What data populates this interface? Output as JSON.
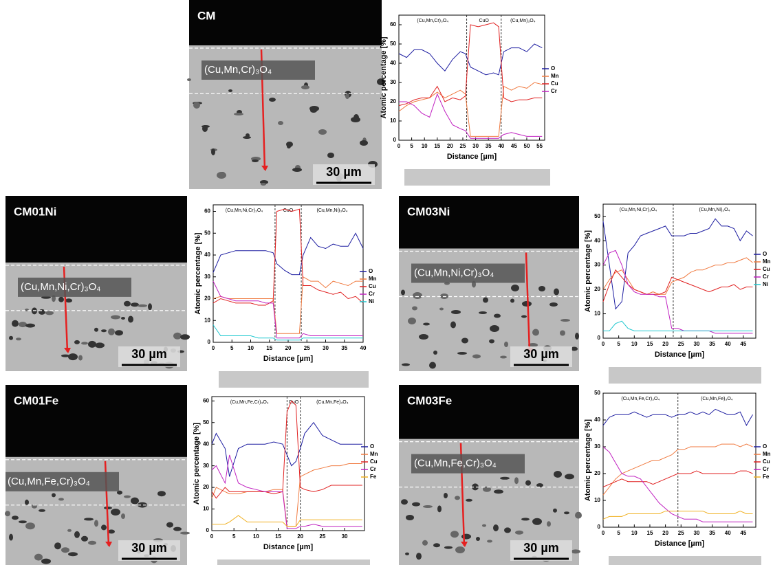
{
  "micrographs": [
    {
      "label": "CM",
      "phase": "(Cu,Mn,Cr)₃O₄",
      "scale": "30 µm"
    },
    {
      "label": "CM01Ni",
      "phase": "(Cu,Mn,Ni,Cr)₃O₄",
      "scale": "30 µm"
    },
    {
      "label": "CM03Ni",
      "phase": "(Cu,Mn,Ni,Cr)₃O₄",
      "scale": "30 µm"
    },
    {
      "label": "CM01Fe",
      "phase": "(Cu,Mn,Fe,Cr)₃O₄",
      "scale": "30 µm"
    },
    {
      "label": "CM03Fe",
      "phase": "(Cu,Mn,Fe,Cr)₃O₄",
      "scale": "30 µm"
    }
  ],
  "chart_data": [
    {
      "type": "line",
      "x_label": "Distance [µm]",
      "y_label": "Atomic percentage [%]",
      "xlim": [
        0,
        57
      ],
      "xticks": [
        0,
        5,
        10,
        15,
        20,
        25,
        30,
        35,
        40,
        45,
        50,
        55
      ],
      "ylim": [
        0,
        65
      ],
      "yticks": [
        0,
        10,
        20,
        30,
        40,
        50,
        60
      ],
      "boundaries": [
        26.5,
        40
      ],
      "region_labels": [
        "(Cu,Mn,Cr)₃O₄",
        "CuO",
        "(Cu,Mn)₃O₄"
      ],
      "x": [
        0,
        3,
        6,
        9,
        12,
        15,
        18,
        21,
        24,
        26,
        28,
        31,
        34,
        37,
        39,
        41,
        44,
        47,
        50,
        53,
        56
      ],
      "series": [
        {
          "name": "O",
          "color": "#1c1ca0",
          "values": [
            45,
            43,
            47,
            47,
            45,
            40,
            36,
            42,
            46,
            45,
            38,
            36,
            34,
            35,
            34,
            46,
            48,
            48,
            46,
            50,
            48
          ]
        },
        {
          "name": "Mn",
          "color": "#f07a40",
          "values": [
            15,
            18,
            20,
            21,
            22,
            25,
            22,
            24,
            26,
            24,
            2,
            2,
            2,
            2,
            2,
            28,
            26,
            28,
            27,
            30,
            29
          ]
        },
        {
          "name": "Cu",
          "color": "#e02020",
          "values": [
            18,
            19,
            21,
            22,
            22,
            28,
            20,
            22,
            21,
            23,
            60,
            59,
            60,
            61,
            59,
            22,
            20,
            21,
            21,
            22,
            22
          ]
        },
        {
          "name": "Cr",
          "color": "#c020c0",
          "values": [
            20,
            20,
            18,
            14,
            12,
            24,
            15,
            8,
            6,
            5,
            1,
            1,
            1,
            1,
            1,
            3,
            4,
            3,
            2,
            2,
            2
          ]
        }
      ]
    },
    {
      "type": "line",
      "x_label": "Distance [µm]",
      "y_label": "Atomic percentage [%]",
      "xlim": [
        0,
        40
      ],
      "xticks": [
        0,
        5,
        10,
        15,
        20,
        25,
        30,
        35,
        40
      ],
      "ylim": [
        0,
        63
      ],
      "yticks": [
        0,
        10,
        20,
        30,
        40,
        50,
        60
      ],
      "boundaries": [
        16.5,
        23.5
      ],
      "region_labels": [
        "(Cu,Mn,Ni,Cr)₃O₄",
        "CuO",
        "(Cu,Mn,Ni)₃O₄"
      ],
      "x": [
        0,
        2,
        4,
        6,
        8,
        10,
        12,
        14,
        16,
        17,
        19,
        21,
        23,
        24,
        26,
        28,
        30,
        32,
        34,
        36,
        38,
        40
      ],
      "series": [
        {
          "name": "O",
          "color": "#1c1ca0",
          "values": [
            32,
            40,
            41,
            42,
            42,
            42,
            42,
            42,
            41,
            36,
            33,
            31,
            31,
            40,
            48,
            44,
            43,
            45,
            44,
            44,
            50,
            43
          ]
        },
        {
          "name": "Mn",
          "color": "#f07a40",
          "values": [
            20,
            21,
            20,
            20,
            20,
            20,
            20,
            20,
            20,
            4,
            4,
            4,
            4,
            30,
            28,
            28,
            25,
            28,
            27,
            26,
            28,
            28
          ]
        },
        {
          "name": "Cu",
          "color": "#e02020",
          "values": [
            18,
            20,
            19,
            18,
            18,
            18,
            17,
            17,
            19,
            60,
            61,
            60,
            61,
            26,
            26,
            24,
            23,
            22,
            23,
            20,
            21,
            18
          ]
        },
        {
          "name": "Cr",
          "color": "#c020c0",
          "values": [
            28,
            21,
            20,
            19,
            19,
            19,
            19,
            18,
            18,
            2,
            2,
            2,
            2,
            4,
            3,
            3,
            3,
            3,
            3,
            3,
            3,
            3
          ]
        },
        {
          "name": "Ni",
          "color": "#20c8d0",
          "values": [
            8,
            3,
            3,
            3,
            3,
            3,
            2,
            2,
            2,
            1,
            1,
            1,
            1,
            2,
            2,
            2,
            2,
            2,
            2,
            2,
            2,
            2
          ]
        }
      ]
    },
    {
      "type": "line",
      "x_label": "Distance [µm]",
      "y_label": "Atomic percentage [%]",
      "xlim": [
        0,
        49
      ],
      "xticks": [
        0,
        5,
        10,
        15,
        20,
        25,
        30,
        35,
        40,
        45
      ],
      "ylim": [
        0,
        55
      ],
      "yticks": [
        0,
        10,
        20,
        30,
        40,
        50
      ],
      "boundaries": [
        22.5
      ],
      "region_labels": [
        "(Cu,Mn,Ni,Cr)₃O₄",
        "(Cu,Mn,Ni)₃O₄"
      ],
      "x": [
        0,
        2,
        4,
        6,
        8,
        10,
        12,
        14,
        16,
        18,
        20,
        22,
        24,
        26,
        28,
        30,
        32,
        34,
        36,
        38,
        40,
        42,
        44,
        46,
        48
      ],
      "series": [
        {
          "name": "O",
          "color": "#1c1ca0",
          "values": [
            48,
            30,
            12,
            15,
            35,
            38,
            42,
            43,
            44,
            45,
            46,
            42,
            42,
            42,
            43,
            43,
            44,
            45,
            49,
            46,
            46,
            45,
            40,
            44,
            42
          ]
        },
        {
          "name": "Mn",
          "color": "#f07a40",
          "values": [
            20,
            24,
            27,
            28,
            24,
            20,
            19,
            18,
            19,
            18,
            18,
            23,
            24,
            25,
            27,
            28,
            28,
            29,
            30,
            30,
            31,
            31,
            32,
            33,
            31
          ]
        },
        {
          "name": "Cu",
          "color": "#e02020",
          "values": [
            15,
            22,
            28,
            25,
            22,
            20,
            19,
            18,
            18,
            18,
            19,
            25,
            24,
            23,
            22,
            21,
            20,
            19,
            20,
            21,
            21,
            22,
            20,
            21,
            21
          ]
        },
        {
          "name": "Cr",
          "color": "#c020c0",
          "values": [
            30,
            35,
            36,
            30,
            22,
            19,
            18,
            18,
            18,
            17,
            17,
            4,
            4,
            3,
            3,
            3,
            3,
            3,
            2,
            2,
            2,
            2,
            2,
            2,
            2
          ]
        },
        {
          "name": "Ni",
          "color": "#20c8d0",
          "values": [
            3,
            3,
            6,
            7,
            4,
            3,
            3,
            3,
            3,
            3,
            3,
            3,
            3,
            3,
            3,
            3,
            3,
            3,
            3,
            3,
            3,
            3,
            3,
            3,
            3
          ]
        }
      ]
    },
    {
      "type": "line",
      "x_label": "Distance [µm]",
      "y_label": "Atomic percentage [%]",
      "xlim": [
        0,
        34.5
      ],
      "xticks": [
        0,
        5,
        10,
        15,
        20,
        25,
        30
      ],
      "ylim": [
        0,
        62
      ],
      "yticks": [
        0,
        10,
        20,
        30,
        40,
        50,
        60
      ],
      "boundaries": [
        17,
        20
      ],
      "region_labels": [
        "(Cu,Mn,Fe,Cr)₃O₄",
        "CuO",
        "(Cu,Mn,Fe)₃O₄"
      ],
      "x": [
        0,
        1,
        3,
        4,
        6,
        8,
        10,
        12,
        14,
        16,
        17,
        18,
        19,
        20,
        21,
        23,
        25,
        27,
        29,
        31,
        33,
        34
      ],
      "series": [
        {
          "name": "O",
          "color": "#1c1ca0",
          "values": [
            40,
            45,
            38,
            25,
            38,
            40,
            40,
            40,
            41,
            40,
            35,
            30,
            32,
            38,
            45,
            50,
            44,
            42,
            40,
            40,
            40,
            40
          ]
        },
        {
          "name": "Mn",
          "color": "#f07a40",
          "values": [
            15,
            20,
            18,
            17,
            17,
            18,
            18,
            18,
            19,
            19,
            2,
            2,
            2,
            25,
            26,
            28,
            29,
            30,
            30,
            31,
            31,
            31
          ]
        },
        {
          "name": "Cu",
          "color": "#e02020",
          "values": [
            18,
            15,
            20,
            18,
            18,
            18,
            18,
            18,
            17,
            18,
            55,
            60,
            58,
            20,
            19,
            18,
            19,
            21,
            21,
            21,
            21,
            21
          ]
        },
        {
          "name": "Cr",
          "color": "#c020c0",
          "values": [
            28,
            30,
            22,
            35,
            22,
            20,
            19,
            18,
            18,
            18,
            1,
            1,
            1,
            2,
            2,
            3,
            2,
            2,
            2,
            2,
            2,
            2
          ]
        },
        {
          "name": "Fe",
          "color": "#f0b020",
          "values": [
            3,
            3,
            3,
            4,
            7,
            4,
            4,
            4,
            4,
            4,
            2,
            2,
            2,
            5,
            5,
            5,
            5,
            5,
            5,
            5,
            5,
            5
          ]
        }
      ]
    },
    {
      "type": "line",
      "x_label": "Distance [µm]",
      "y_label": "Atomic percentage [%]",
      "xlim": [
        0,
        49
      ],
      "xticks": [
        0,
        5,
        10,
        15,
        20,
        25,
        30,
        35,
        40,
        45
      ],
      "ylim": [
        0,
        50
      ],
      "yticks": [
        0,
        10,
        20,
        30,
        40,
        50
      ],
      "boundaries": [
        24
      ],
      "region_labels": [
        "(Cu,Mn,Fe,Cr)₃O₄",
        "(Cu,Mn,Fe)₃O₄"
      ],
      "x": [
        0,
        2,
        4,
        6,
        8,
        10,
        12,
        14,
        16,
        18,
        20,
        22,
        24,
        26,
        28,
        30,
        32,
        34,
        36,
        38,
        40,
        42,
        44,
        46,
        48
      ],
      "series": [
        {
          "name": "O",
          "color": "#1c1ca0",
          "values": [
            38,
            41,
            42,
            42,
            42,
            43,
            42,
            41,
            42,
            42,
            42,
            41,
            42,
            42,
            43,
            42,
            43,
            42,
            44,
            43,
            42,
            42,
            43,
            38,
            42
          ]
        },
        {
          "name": "Mn",
          "color": "#f07a40",
          "values": [
            12,
            15,
            18,
            20,
            21,
            22,
            23,
            24,
            25,
            25,
            26,
            27,
            29,
            29,
            30,
            30,
            30,
            30,
            30,
            31,
            31,
            31,
            30,
            31,
            30
          ]
        },
        {
          "name": "Cu",
          "color": "#e02020",
          "values": [
            15,
            16,
            17,
            18,
            17,
            17,
            17,
            17,
            16,
            17,
            18,
            19,
            20,
            20,
            20,
            21,
            20,
            20,
            20,
            20,
            20,
            20,
            21,
            21,
            20
          ]
        },
        {
          "name": "Cr",
          "color": "#c020c0",
          "values": [
            30,
            28,
            24,
            20,
            19,
            19,
            18,
            15,
            12,
            9,
            7,
            5,
            4,
            3,
            3,
            3,
            2,
            2,
            2,
            2,
            2,
            2,
            2,
            2,
            2
          ]
        },
        {
          "name": "Fe",
          "color": "#f0b020",
          "values": [
            3,
            4,
            4,
            4,
            5,
            5,
            5,
            5,
            5,
            5,
            6,
            6,
            6,
            6,
            6,
            6,
            6,
            5,
            5,
            5,
            5,
            5,
            6,
            5,
            5
          ]
        }
      ]
    }
  ]
}
